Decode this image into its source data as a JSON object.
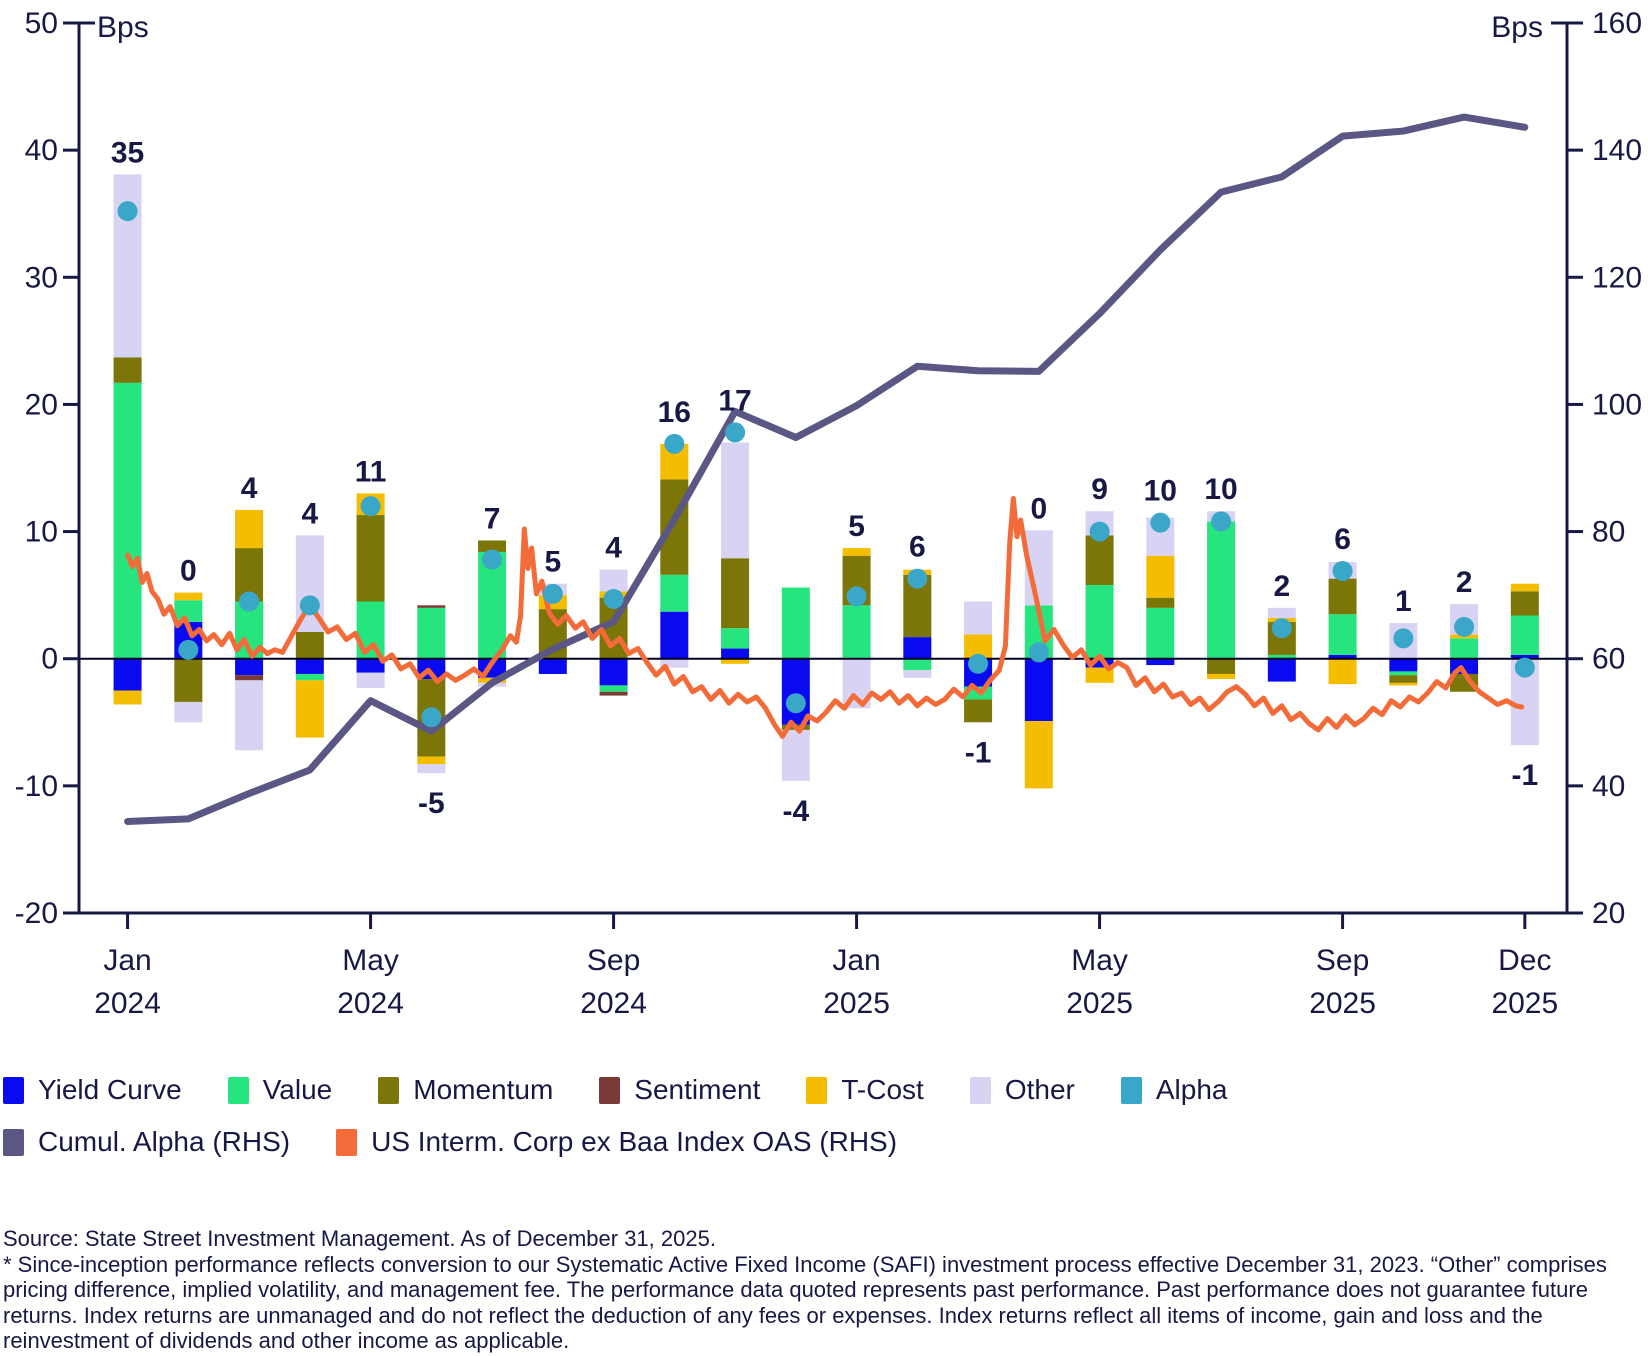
{
  "chart_data": {
    "type": "combo",
    "subtypes": [
      "stacked-bar",
      "scatter",
      "line",
      "line"
    ],
    "title": "",
    "left_axis": {
      "label": "Bps",
      "min": -20,
      "max": 50,
      "ticks": [
        50,
        40,
        30,
        20,
        10,
        0,
        -10,
        -20
      ]
    },
    "right_axis": {
      "label": "Bps",
      "min": 20,
      "max": 160,
      "ticks": [
        160,
        140,
        120,
        100,
        80,
        60,
        40,
        20
      ]
    },
    "x_axis": {
      "tick_labels": [
        {
          "month": "Jan",
          "year": "2024",
          "index": 0
        },
        {
          "month": "May",
          "year": "2024",
          "index": 4
        },
        {
          "month": "Sep",
          "year": "2024",
          "index": 8
        },
        {
          "month": "Jan",
          "year": "2025",
          "index": 12
        },
        {
          "month": "May",
          "year": "2025",
          "index": 16
        },
        {
          "month": "Sep",
          "year": "2025",
          "index": 20
        },
        {
          "month": "Dec",
          "year": "2025",
          "index": 23
        }
      ]
    },
    "series_order": [
      "yield_curve",
      "value",
      "momentum",
      "sentiment",
      "t_cost",
      "other"
    ],
    "colors": {
      "yield_curve": "#0a0af0",
      "value": "#27e57e",
      "momentum": "#7b7607",
      "sentiment": "#7a3b36",
      "t_cost": "#f5bd00",
      "other": "#d8d3f2",
      "alpha": "#3ba7c8",
      "cumul_alpha": "#5a5784",
      "oas": "#f26b39",
      "text": "#181845",
      "axis": "#181845",
      "zero_line": "#000022"
    },
    "bars": [
      {
        "month": "Jan 2024",
        "label": 35,
        "alpha": 35.2,
        "segments": {
          "yield_curve": -2.5,
          "value": 21.7,
          "momentum": 2.0,
          "sentiment": 0,
          "t_cost": -1.1,
          "other": 14.4
        }
      },
      {
        "month": "Feb 2024",
        "label": 0,
        "alpha": 0.7,
        "segments": {
          "yield_curve": 2.9,
          "value": 1.7,
          "momentum": -3.4,
          "sentiment": 0,
          "t_cost": 0.6,
          "other": -1.6
        }
      },
      {
        "month": "Mar 2024",
        "label": 4,
        "alpha": 4.5,
        "segments": {
          "yield_curve": -1.3,
          "value": 4.5,
          "momentum": 4.2,
          "sentiment": -0.4,
          "t_cost": 3.0,
          "other": -5.5
        }
      },
      {
        "month": "Apr 2024",
        "label": 4,
        "alpha": 4.2,
        "segments": {
          "yield_curve": -1.2,
          "value": -0.5,
          "momentum": 2.1,
          "sentiment": 0,
          "t_cost": -4.5,
          "other": 7.6
        }
      },
      {
        "month": "May 2024",
        "label": 11,
        "alpha": 12.0,
        "segments": {
          "yield_curve": -1.1,
          "value": 4.5,
          "momentum": 6.8,
          "sentiment": 0,
          "t_cost": 1.7,
          "other": -1.2
        }
      },
      {
        "month": "Jun 2024",
        "label": -5,
        "alpha": -4.6,
        "segments": {
          "yield_curve": -1.6,
          "value": 4.0,
          "momentum": -6.1,
          "sentiment": 0.2,
          "t_cost": -0.6,
          "other": -0.7
        }
      },
      {
        "month": "Jul 2024",
        "label": 7,
        "alpha": 7.8,
        "segments": {
          "yield_curve": -1.5,
          "value": 8.4,
          "momentum": 0.9,
          "sentiment": 0,
          "t_cost": -0.4,
          "other": -0.3
        }
      },
      {
        "month": "Aug 2024",
        "label": 5,
        "alpha": 5.1,
        "segments": {
          "yield_curve": -1.2,
          "value": 0,
          "momentum": 3.9,
          "sentiment": 0,
          "t_cost": 1.1,
          "other": 0.9
        }
      },
      {
        "month": "Sep 2024",
        "label": 4,
        "alpha": 4.7,
        "segments": {
          "yield_curve": -2.1,
          "value": -0.5,
          "momentum": 4.8,
          "sentiment": -0.3,
          "t_cost": 0.5,
          "other": 1.7
        }
      },
      {
        "month": "Oct 2024",
        "label": 16,
        "alpha": 16.9,
        "segments": {
          "yield_curve": 3.7,
          "value": 2.9,
          "momentum": 7.5,
          "sentiment": 0,
          "t_cost": 2.8,
          "other": -0.7
        }
      },
      {
        "month": "Nov 2024",
        "label": 17,
        "alpha": 17.8,
        "segments": {
          "yield_curve": 0.8,
          "value": 1.6,
          "momentum": 5.5,
          "sentiment": 0,
          "t_cost": -0.4,
          "other": 9.1
        }
      },
      {
        "month": "Dec 2024",
        "label": -4,
        "alpha": -3.5,
        "segments": {
          "yield_curve": -5.2,
          "value": 5.6,
          "momentum": -0.4,
          "sentiment": 0,
          "t_cost": 0,
          "other": -4.0
        }
      },
      {
        "month": "Jan 2025",
        "label": 5,
        "alpha": 4.9,
        "segments": {
          "yield_curve": 0,
          "value": 4.2,
          "momentum": 3.9,
          "sentiment": 0,
          "t_cost": 0.6,
          "other": -3.9
        }
      },
      {
        "month": "Feb 2025",
        "label": 6,
        "alpha": 6.3,
        "segments": {
          "yield_curve": 1.7,
          "value": -0.9,
          "momentum": 4.9,
          "sentiment": 0,
          "t_cost": 0.4,
          "other": -0.6
        }
      },
      {
        "month": "Mar 2025",
        "label": -1,
        "alpha": -0.4,
        "segments": {
          "yield_curve": -2.2,
          "value": -1.0,
          "momentum": -1.8,
          "sentiment": 0,
          "t_cost": 1.9,
          "other": 2.6
        }
      },
      {
        "month": "Apr 2025",
        "label": 0,
        "alpha": 0.5,
        "segments": {
          "yield_curve": -4.9,
          "value": 4.2,
          "momentum": 0,
          "sentiment": 0,
          "t_cost": -5.3,
          "other": 5.9
        }
      },
      {
        "month": "May 2025",
        "label": 9,
        "alpha": 10.0,
        "segments": {
          "yield_curve": -0.7,
          "value": 5.8,
          "momentum": 3.9,
          "sentiment": 0,
          "t_cost": -1.2,
          "other": 1.9
        }
      },
      {
        "month": "Jun 2025",
        "label": 10,
        "alpha": 10.7,
        "segments": {
          "yield_curve": -0.5,
          "value": 4.0,
          "momentum": 0.8,
          "sentiment": 0,
          "t_cost": 3.3,
          "other": 3.0
        }
      },
      {
        "month": "Jul 2025",
        "label": 10,
        "alpha": 10.8,
        "segments": {
          "yield_curve": 0,
          "value": 10.8,
          "momentum": -1.2,
          "sentiment": 0,
          "t_cost": -0.4,
          "other": 0.8
        }
      },
      {
        "month": "Aug 2025",
        "label": 2,
        "alpha": 2.4,
        "segments": {
          "yield_curve": -1.8,
          "value": 0.3,
          "momentum": 2.6,
          "sentiment": 0,
          "t_cost": 0.3,
          "other": 0.8
        }
      },
      {
        "month": "Sep 2025",
        "label": 6,
        "alpha": 6.9,
        "segments": {
          "yield_curve": 0.3,
          "value": 3.2,
          "momentum": 2.8,
          "sentiment": 0,
          "t_cost": -2.0,
          "other": 1.3
        }
      },
      {
        "month": "Oct 2025",
        "label": 1,
        "alpha": 1.6,
        "segments": {
          "yield_curve": -1.0,
          "value": -0.3,
          "momentum": -0.6,
          "sentiment": 0,
          "t_cost": -0.2,
          "other": 2.8
        }
      },
      {
        "month": "Nov 2025",
        "label": 2,
        "alpha": 2.5,
        "segments": {
          "yield_curve": -1.2,
          "value": 1.6,
          "momentum": -1.4,
          "sentiment": 0,
          "t_cost": 0.3,
          "other": 2.4
        }
      },
      {
        "month": "Dec 2025",
        "label": -1,
        "alpha": -0.7,
        "segments": {
          "yield_curve": 0.3,
          "value": 3.1,
          "momentum": 1.9,
          "sentiment": 0,
          "t_cost": 0.6,
          "other": -6.8
        }
      }
    ],
    "cumul_alpha_rhs": [
      34.4,
      34.8,
      38.8,
      42.5,
      53.4,
      48.6,
      56.2,
      61.5,
      65.8,
      81.9,
      98.9,
      94.8,
      99.8,
      106.0,
      105.3,
      105.2,
      114.3,
      124.3,
      133.4,
      135.8,
      142.2,
      143.0,
      145.2,
      143.6
    ],
    "oas_rhs": [
      [
        0.5,
        76.3
      ],
      [
        0.58,
        74.5
      ],
      [
        0.66,
        75.8
      ],
      [
        0.74,
        72.0
      ],
      [
        0.82,
        73.4
      ],
      [
        0.9,
        70.6
      ],
      [
        1.0,
        69.4
      ],
      [
        1.1,
        67.0
      ],
      [
        1.2,
        68.2
      ],
      [
        1.32,
        65.2
      ],
      [
        1.44,
        66.4
      ],
      [
        1.56,
        63.6
      ],
      [
        1.68,
        64.6
      ],
      [
        1.8,
        62.8
      ],
      [
        1.92,
        63.8
      ],
      [
        2.05,
        62.2
      ],
      [
        2.18,
        64.0
      ],
      [
        2.3,
        61.4
      ],
      [
        2.42,
        63.0
      ],
      [
        2.55,
        60.4
      ],
      [
        2.68,
        61.8
      ],
      [
        2.8,
        60.8
      ],
      [
        2.92,
        61.4
      ],
      [
        3.05,
        61.0
      ],
      [
        3.2,
        63.6
      ],
      [
        3.35,
        66.2
      ],
      [
        3.5,
        68.4
      ],
      [
        3.65,
        66.4
      ],
      [
        3.8,
        64.2
      ],
      [
        3.95,
        65.0
      ],
      [
        4.1,
        63.0
      ],
      [
        4.25,
        64.0
      ],
      [
        4.4,
        61.0
      ],
      [
        4.55,
        62.2
      ],
      [
        4.7,
        59.6
      ],
      [
        4.85,
        60.6
      ],
      [
        5.0,
        58.4
      ],
      [
        5.15,
        59.2
      ],
      [
        5.3,
        57.0
      ],
      [
        5.45,
        58.2
      ],
      [
        5.6,
        56.4
      ],
      [
        5.75,
        57.6
      ],
      [
        5.9,
        56.6
      ],
      [
        6.05,
        57.4
      ],
      [
        6.2,
        58.4
      ],
      [
        6.35,
        57.2
      ],
      [
        6.5,
        59.4
      ],
      [
        6.65,
        61.2
      ],
      [
        6.8,
        63.6
      ],
      [
        6.9,
        62.6
      ],
      [
        6.97,
        66.8
      ],
      [
        7.03,
        80.4
      ],
      [
        7.09,
        74.2
      ],
      [
        7.15,
        77.4
      ],
      [
        7.23,
        70.2
      ],
      [
        7.32,
        72.2
      ],
      [
        7.44,
        67.2
      ],
      [
        7.58,
        65.4
      ],
      [
        7.72,
        66.8
      ],
      [
        7.87,
        64.8
      ],
      [
        8.0,
        65.8
      ],
      [
        8.15,
        63.2
      ],
      [
        8.3,
        64.6
      ],
      [
        8.45,
        62.0
      ],
      [
        8.6,
        63.2
      ],
      [
        8.75,
        60.8
      ],
      [
        8.9,
        61.6
      ],
      [
        9.05,
        59.4
      ],
      [
        9.2,
        57.4
      ],
      [
        9.35,
        58.8
      ],
      [
        9.5,
        56.0
      ],
      [
        9.65,
        57.2
      ],
      [
        9.8,
        54.8
      ],
      [
        9.95,
        55.6
      ],
      [
        10.1,
        53.6
      ],
      [
        10.25,
        55.0
      ],
      [
        10.4,
        53.0
      ],
      [
        10.55,
        54.4
      ],
      [
        10.7,
        53.2
      ],
      [
        10.85,
        54.0
      ],
      [
        11.0,
        52.2
      ],
      [
        11.15,
        49.6
      ],
      [
        11.28,
        47.8
      ],
      [
        11.42,
        50.0
      ],
      [
        11.56,
        48.6
      ],
      [
        11.7,
        51.0
      ],
      [
        11.85,
        50.2
      ],
      [
        12.0,
        51.6
      ],
      [
        12.15,
        53.4
      ],
      [
        12.3,
        52.2
      ],
      [
        12.45,
        54.2
      ],
      [
        12.6,
        52.8
      ],
      [
        12.75,
        54.6
      ],
      [
        12.9,
        53.6
      ],
      [
        13.05,
        54.8
      ],
      [
        13.2,
        53.0
      ],
      [
        13.35,
        54.2
      ],
      [
        13.5,
        52.6
      ],
      [
        13.65,
        53.8
      ],
      [
        13.8,
        52.8
      ],
      [
        13.95,
        53.6
      ],
      [
        14.1,
        55.2
      ],
      [
        14.25,
        54.0
      ],
      [
        14.4,
        55.8
      ],
      [
        14.55,
        54.6
      ],
      [
        14.7,
        56.6
      ],
      [
        14.85,
        58.2
      ],
      [
        14.95,
        62.0
      ],
      [
        15.02,
        78.2
      ],
      [
        15.08,
        85.2
      ],
      [
        15.14,
        79.2
      ],
      [
        15.2,
        81.8
      ],
      [
        15.3,
        76.2
      ],
      [
        15.45,
        69.8
      ],
      [
        15.6,
        62.8
      ],
      [
        15.75,
        64.6
      ],
      [
        15.9,
        62.2
      ],
      [
        16.05,
        60.2
      ],
      [
        16.2,
        61.4
      ],
      [
        16.35,
        59.0
      ],
      [
        16.5,
        60.4
      ],
      [
        16.65,
        58.4
      ],
      [
        16.8,
        59.4
      ],
      [
        16.95,
        58.6
      ],
      [
        17.1,
        55.8
      ],
      [
        17.25,
        57.0
      ],
      [
        17.4,
        54.8
      ],
      [
        17.55,
        56.0
      ],
      [
        17.7,
        54.0
      ],
      [
        17.85,
        54.6
      ],
      [
        18.0,
        52.8
      ],
      [
        18.15,
        53.8
      ],
      [
        18.3,
        52.0
      ],
      [
        18.45,
        53.2
      ],
      [
        18.6,
        54.8
      ],
      [
        18.75,
        55.6
      ],
      [
        18.9,
        54.4
      ],
      [
        19.05,
        52.6
      ],
      [
        19.2,
        53.8
      ],
      [
        19.35,
        51.4
      ],
      [
        19.5,
        52.6
      ],
      [
        19.65,
        50.4
      ],
      [
        19.8,
        51.4
      ],
      [
        19.95,
        49.8
      ],
      [
        20.1,
        48.8
      ],
      [
        20.25,
        50.6
      ],
      [
        20.4,
        49.2
      ],
      [
        20.55,
        51.0
      ],
      [
        20.7,
        49.6
      ],
      [
        20.85,
        50.6
      ],
      [
        21.0,
        52.2
      ],
      [
        21.15,
        51.2
      ],
      [
        21.3,
        53.4
      ],
      [
        21.45,
        52.4
      ],
      [
        21.6,
        54.0
      ],
      [
        21.75,
        53.2
      ],
      [
        21.9,
        54.6
      ],
      [
        22.05,
        56.4
      ],
      [
        22.2,
        55.4
      ],
      [
        22.35,
        57.8
      ],
      [
        22.45,
        58.6
      ],
      [
        22.6,
        56.4
      ],
      [
        22.75,
        54.8
      ],
      [
        22.9,
        53.8
      ],
      [
        23.05,
        52.8
      ],
      [
        23.2,
        53.4
      ],
      [
        23.35,
        52.6
      ],
      [
        23.45,
        52.4
      ]
    ]
  },
  "legend": {
    "rows": [
      [
        {
          "key": "yield_curve",
          "label": "Yield Curve"
        },
        {
          "key": "value",
          "label": "Value"
        },
        {
          "key": "momentum",
          "label": "Momentum"
        },
        {
          "key": "sentiment",
          "label": "Sentiment"
        },
        {
          "key": "t_cost",
          "label": "T-Cost"
        },
        {
          "key": "other",
          "label": "Other"
        },
        {
          "key": "alpha",
          "label": "Alpha"
        }
      ],
      [
        {
          "key": "cumul_alpha",
          "label": "Cumul. Alpha (RHS)"
        },
        {
          "key": "oas",
          "label": "US Interm. Corp ex Baa Index OAS (RHS)"
        }
      ]
    ]
  },
  "footnotes": {
    "source": "Source: State Street Investment Management. As of December 31, 2025.",
    "disclaimer": "* Since-inception performance reflects conversion to our Systematic Active Fixed Income (SAFI) investment process effective December 31, 2023. “Other” comprises pricing difference, implied volatility, and management fee. The performance data quoted represents past performance. Past performance does not guarantee future returns. Index returns are unmanaged and do not reflect the deduction of any fees or expenses. Index returns reflect all items of income, gain and loss and the reinvestment of dividends and other income as applicable."
  }
}
